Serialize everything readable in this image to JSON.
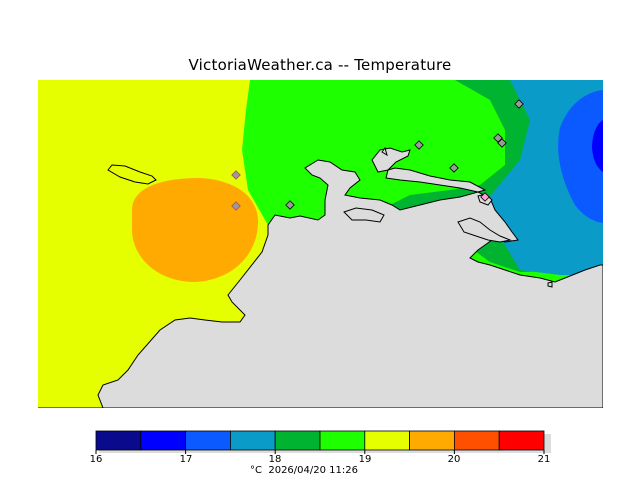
{
  "title": "VictoriaWeather.ca -- Temperature",
  "footer": {
    "unit": "°C",
    "timestamp": "2026/04/20 11:26"
  },
  "colorbar": {
    "ticks": [
      "16",
      "17",
      "18",
      "19",
      "20",
      "21"
    ],
    "bands": [
      {
        "from": 16.0,
        "to": 16.5,
        "color": "#0a0a8c"
      },
      {
        "from": 16.5,
        "to": 17.0,
        "color": "#0000ff"
      },
      {
        "from": 17.0,
        "to": 17.5,
        "color": "#0a5aff"
      },
      {
        "from": 17.5,
        "to": 18.0,
        "color": "#0a9bc8"
      },
      {
        "from": 18.0,
        "to": 18.5,
        "color": "#00b432"
      },
      {
        "from": 18.5,
        "to": 19.0,
        "color": "#1eff00"
      },
      {
        "from": 19.0,
        "to": 19.5,
        "color": "#e6ff00"
      },
      {
        "from": 19.5,
        "to": 20.0,
        "color": "#ffaa00"
      },
      {
        "from": 20.0,
        "to": 20.5,
        "color": "#ff5000"
      },
      {
        "from": 20.5,
        "to": 21.0,
        "color": "#ff0000"
      }
    ]
  },
  "colors": {
    "land": "#dcdcdc",
    "coast": "#000000",
    "station_fill": "#9a9a9a"
  },
  "stations": [
    "station",
    "station",
    "station",
    "station",
    "station",
    "station",
    "station",
    "station",
    "station"
  ]
}
